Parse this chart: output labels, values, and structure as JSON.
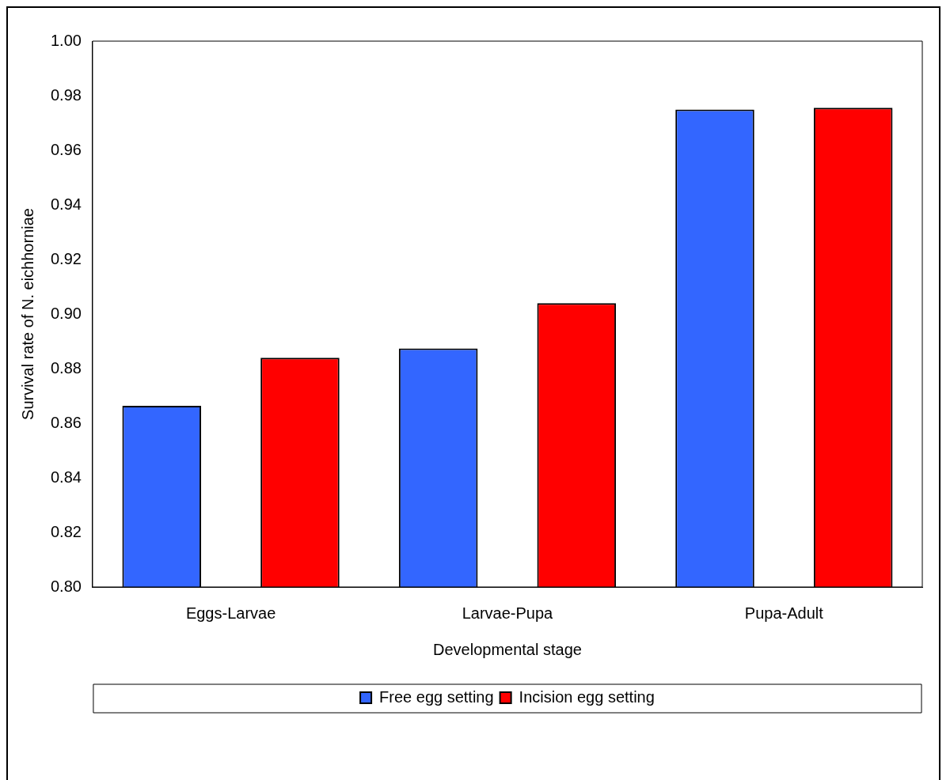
{
  "chart_data": {
    "type": "bar",
    "xlabel": "Developmental stage",
    "ylabel": "Survival rate of N. eichhorniae",
    "categories": [
      "Eggs-Larvae",
      "Larvae-Pupa",
      "Pupa-Adult"
    ],
    "series": [
      {
        "name": "Free egg setting",
        "color": "#3366ff",
        "values": [
          0.8664,
          0.8874,
          0.9749
        ]
      },
      {
        "name": "Incision egg setting",
        "color": "#ff0000",
        "values": [
          0.884,
          0.904,
          0.9756
        ]
      }
    ],
    "ylim": [
      0.8,
      1.0
    ],
    "yticks": [
      {
        "value": 0.8,
        "label": "0.80"
      },
      {
        "value": 0.82,
        "label": "0.82"
      },
      {
        "value": 0.84,
        "label": "0.84"
      },
      {
        "value": 0.86,
        "label": "0.86"
      },
      {
        "value": 0.88,
        "label": "0.88"
      },
      {
        "value": 0.9,
        "label": "0.90"
      },
      {
        "value": 0.92,
        "label": "0.92"
      },
      {
        "value": 0.94,
        "label": "0.94"
      },
      {
        "value": 0.96,
        "label": "0.96"
      },
      {
        "value": 0.98,
        "label": "0.98"
      },
      {
        "value": 1.0,
        "label": "1.00"
      }
    ],
    "grid": false,
    "legend": "bottom"
  }
}
